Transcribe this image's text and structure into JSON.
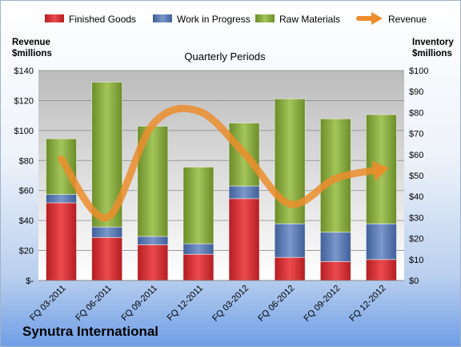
{
  "colors": {
    "finished_goods": "#d42a2e",
    "work_in_progress": "#5576b0",
    "raw_materials": "#86a83a",
    "revenue": "#ec8d2d"
  },
  "company": "Synutra International",
  "chart_data": {
    "type": "bar",
    "stacked": true,
    "title": "Quarterly Periods",
    "categories": [
      "FQ 03-2011",
      "FQ 06-2011",
      "FQ 09-2011",
      "FQ 12-2011",
      "FQ 03-2012",
      "FQ 06-2012",
      "FQ 09-2012",
      "FQ 12-2012"
    ],
    "y_left": {
      "label": "Revenue\n$millions",
      "label_lines": [
        "Revenue",
        "$millions"
      ],
      "range": [
        0,
        140
      ],
      "ticks": [
        0,
        20,
        40,
        60,
        80,
        100,
        120,
        140
      ],
      "tick_labels": [
        "$-",
        "$20",
        "$40",
        "$60",
        "$80",
        "$100",
        "$120",
        "$140"
      ]
    },
    "y_right": {
      "label": "Inventory\n$millions",
      "label_lines": [
        "Inventory",
        "$millions"
      ],
      "range": [
        0,
        100
      ],
      "ticks": [
        0,
        10,
        20,
        30,
        40,
        50,
        60,
        70,
        80,
        90,
        100
      ],
      "tick_labels": [
        "$0",
        "$10",
        "$20",
        "$30",
        "$40",
        "$50",
        "$60",
        "$70",
        "$80",
        "$90",
        "$100"
      ]
    },
    "series": [
      {
        "name": "Finished Goods",
        "type": "bar",
        "axis": "right",
        "color_key": "finished_goods",
        "values": [
          37,
          20.5,
          17,
          12.5,
          39,
          11,
          9,
          10
        ]
      },
      {
        "name": "Work in Progress",
        "type": "bar",
        "axis": "right",
        "color_key": "work_in_progress",
        "values": [
          4,
          5,
          4,
          5,
          6,
          16,
          14,
          17
        ]
      },
      {
        "name": "Raw Materials",
        "type": "bar",
        "axis": "right",
        "color_key": "raw_materials",
        "values": [
          26.5,
          69,
          52.5,
          36.5,
          30,
          59.5,
          54,
          52
        ]
      },
      {
        "name": "Revenue",
        "type": "line",
        "axis": "left",
        "color_key": "revenue",
        "values": [
          81,
          42,
          104,
          113,
          85,
          51,
          68,
          74
        ]
      }
    ],
    "grid": true,
    "legend_position": "top"
  }
}
